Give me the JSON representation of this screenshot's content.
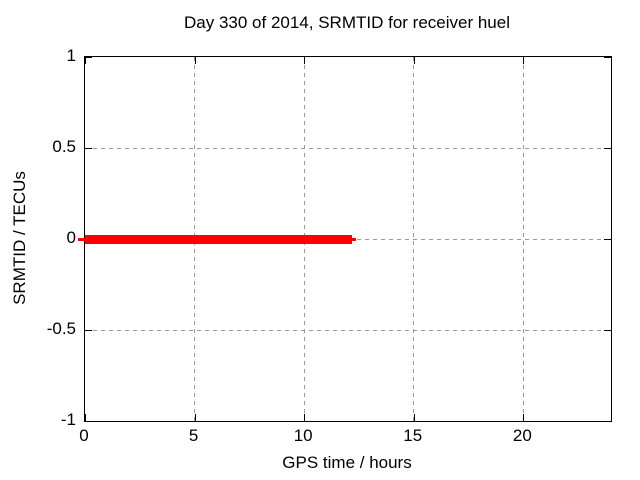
{
  "chart_data": {
    "type": "line",
    "title": "Day 330 of 2014, SRMTID for receiver huel",
    "xlabel": "GPS time / hours",
    "ylabel": "SRMTID / TECUs",
    "xlim": [
      0,
      24
    ],
    "ylim": [
      -1,
      1
    ],
    "xticks": {
      "values": [
        0,
        5,
        10,
        15,
        20
      ],
      "labels": [
        "0",
        "5",
        "10",
        "15",
        "20"
      ]
    },
    "yticks": {
      "values": [
        1,
        0.5,
        0,
        -0.5,
        -1
      ],
      "labels": [
        "1",
        "0.5",
        "0",
        "-0.5",
        "-1"
      ]
    },
    "grid": "dashed, at every labeled tick",
    "legend": "none",
    "series": [
      {
        "name": "SRMTID",
        "color": "#ff0000",
        "description": "thick horizontal red line at SRMTID = 0 TECUs spanning GPS time 0 to about 12.2 hours",
        "y": 0,
        "x_start": 0,
        "x_end": 12.2,
        "segments": [
          {
            "x1": -0.32,
            "x2": 0,
            "y": 0,
            "thickness_px": 3
          },
          {
            "x1": 0,
            "x2": 12.2,
            "y": 0,
            "thickness_px": 9
          },
          {
            "x1": 12.2,
            "x2": 12.38,
            "y": 0,
            "thickness_px": 3
          }
        ]
      }
    ],
    "colors": {
      "series": "#ff0000",
      "grid": "#999999",
      "border": "#000000",
      "text": "#000000",
      "background": "#ffffff"
    }
  }
}
